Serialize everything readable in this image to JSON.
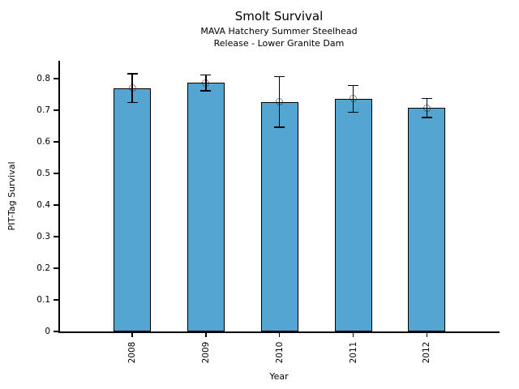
{
  "chart_data": {
    "type": "bar",
    "title": "Smolt Survival",
    "subtitle1": "MAVA Hatchery Summer Steelhead",
    "subtitle2": "Release - Lower Granite Dam",
    "xlabel": "Year",
    "ylabel": "PIT-Tag Survival",
    "categories": [
      "2008",
      "2009",
      "2010",
      "2011",
      "2012"
    ],
    "values": [
      0.77,
      0.787,
      0.726,
      0.736,
      0.707
    ],
    "error_bars": [
      0.045,
      0.025,
      0.08,
      0.042,
      0.03
    ],
    "ylim": [
      0,
      0.857
    ],
    "yticks": [
      0,
      0.1,
      0.2,
      0.3,
      0.4,
      0.5,
      0.6,
      0.7,
      0.8
    ],
    "ytick_labels": [
      "0",
      "0.1",
      "0.2",
      "0.3",
      "0.4",
      "0.5",
      "0.6",
      "0.7",
      "0.8"
    ],
    "bar_color": "#55a5d2",
    "bar_edge_color": "#000000",
    "error_color": "#000000",
    "marker": "open-circle",
    "grid": false,
    "legend": null
  }
}
